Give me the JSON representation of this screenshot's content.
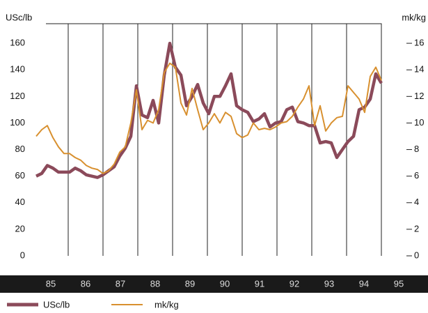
{
  "chart_data": {
    "type": "line",
    "y_label": "USc/lb",
    "y2_label": "mk/kg",
    "x": [
      85.08,
      85.24,
      85.4,
      85.56,
      85.72,
      85.88,
      86.04,
      86.2,
      86.36,
      86.52,
      86.68,
      86.84,
      87.0,
      87.16,
      87.32,
      87.48,
      87.64,
      87.8,
      87.96,
      88.12,
      88.28,
      88.44,
      88.6,
      88.76,
      88.92,
      89.08,
      89.24,
      89.4,
      89.56,
      89.72,
      89.88,
      90.04,
      90.2,
      90.36,
      90.52,
      90.68,
      90.84,
      91.0,
      91.16,
      91.32,
      91.48,
      91.64,
      91.8,
      91.96,
      92.12,
      92.28,
      92.44,
      92.6,
      92.76,
      92.92,
      93.08,
      93.24,
      93.4,
      93.56,
      93.72,
      93.88,
      94.04,
      94.2,
      94.36,
      94.52,
      94.68,
      94.84,
      95.0
    ],
    "series": [
      {
        "name": "USc/lb",
        "color": "#8b4a5a",
        "values": [
          60,
          62,
          68,
          66,
          63,
          63,
          63,
          66,
          64,
          61,
          60,
          59,
          61,
          64,
          67,
          75,
          81,
          90,
          128,
          106,
          104,
          117,
          100,
          136,
          160,
          142,
          136,
          113,
          120,
          129,
          115,
          107,
          120,
          120,
          128,
          137,
          113,
          110,
          108,
          101,
          103,
          107,
          97,
          100,
          101,
          110,
          112,
          101,
          100,
          98,
          98,
          85,
          86,
          85,
          74,
          80,
          86,
          90,
          110,
          112,
          118,
          137,
          130
        ]
      },
      {
        "name": "mk/kg",
        "color": "#d8902f",
        "axis": "y2",
        "values": [
          9.0,
          9.5,
          9.8,
          8.9,
          8.2,
          7.7,
          7.7,
          7.4,
          7.2,
          6.8,
          6.6,
          6.5,
          6.2,
          6.4,
          6.9,
          7.8,
          8.2,
          10.0,
          12.5,
          9.5,
          10.2,
          10.0,
          11.0,
          13.8,
          14.5,
          14.2,
          11.5,
          10.6,
          12.6,
          11.0,
          9.5,
          10.0,
          10.7,
          10.0,
          10.8,
          10.5,
          9.2,
          8.9,
          9.1,
          10.0,
          9.5,
          9.6,
          9.5,
          9.7,
          10.0,
          10.1,
          10.5,
          11.2,
          11.8,
          12.8,
          9.8,
          11.3,
          9.4,
          10.0,
          10.4,
          10.5,
          12.8,
          12.3,
          11.8,
          10.8,
          13.5,
          14.2,
          13.2
        ]
      }
    ],
    "xlim": [
      85,
      96
    ],
    "xticks": [
      {
        "value": 85.5,
        "label": "85"
      },
      {
        "value": 86.5,
        "label": "86"
      },
      {
        "value": 87.5,
        "label": "87"
      },
      {
        "value": 88.5,
        "label": "88"
      },
      {
        "value": 89.5,
        "label": "89"
      },
      {
        "value": 90.5,
        "label": "90"
      },
      {
        "value": 91.5,
        "label": "91"
      },
      {
        "value": 92.5,
        "label": "92"
      },
      {
        "value": 93.5,
        "label": "93"
      },
      {
        "value": 94.5,
        "label": "94"
      },
      {
        "value": 95.5,
        "label": "95"
      }
    ],
    "xgrid": [
      86,
      87,
      88,
      89,
      90,
      91,
      92,
      93,
      94,
      95
    ],
    "ylim": [
      0,
      175
    ],
    "yticks": [
      0,
      20,
      40,
      60,
      80,
      100,
      120,
      140,
      160
    ],
    "y2lim": [
      0,
      17.5
    ],
    "y2ticks": [
      0,
      2,
      4,
      6,
      8,
      10,
      12,
      14,
      16
    ]
  }
}
